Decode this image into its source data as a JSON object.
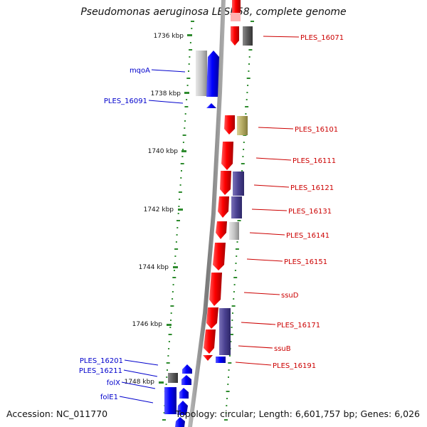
{
  "title": "Pseudomonas aeruginosa LESB58, complete genome",
  "footer": {
    "accession": "Accession: NC_011770",
    "summary": "Topology: circular; Length: 6,601,757 bp; Genes: 6,026"
  },
  "colors": {
    "label_red": "#cc0000",
    "label_blue": "#0000cc",
    "tick_green": "#2e8b2e",
    "axis_gray": "#8a8a8a"
  },
  "scale_ticks": [
    "1736 kbp",
    "1738 kbp",
    "1740 kbp",
    "1742 kbp",
    "1744 kbp",
    "1746 kbp",
    "1748 kbp"
  ],
  "genes_right": [
    "PLES_16071",
    "PLES_16101",
    "PLES_16111",
    "PLES_16121",
    "PLES_16131",
    "PLES_16141",
    "PLES_16151",
    "ssuD",
    "PLES_16171",
    "ssuB",
    "PLES_16191"
  ],
  "genes_left": [
    "mqoA",
    "PLES_16091",
    "PLES_16201",
    "PLES_16211",
    "folX",
    "folE1"
  ]
}
